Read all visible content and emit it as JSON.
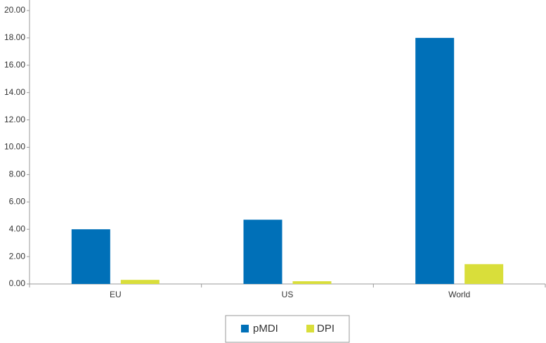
{
  "chart_data": {
    "type": "bar",
    "categories": [
      "EU",
      "US",
      "World"
    ],
    "series": [
      {
        "name": "pMDI",
        "color": "#0070b8",
        "values": [
          4.0,
          4.7,
          18.0
        ]
      },
      {
        "name": "DPI",
        "color": "#d9de3a",
        "values": [
          0.3,
          0.2,
          1.45
        ]
      }
    ],
    "ylim": [
      0,
      20
    ],
    "yticks": [
      {
        "value": 0,
        "label": "0.00"
      },
      {
        "value": 2,
        "label": "2.00"
      },
      {
        "value": 4,
        "label": "4.00"
      },
      {
        "value": 6,
        "label": "6.00"
      },
      {
        "value": 8,
        "label": "8.00"
      },
      {
        "value": 10,
        "label": "10.00"
      },
      {
        "value": 12,
        "label": "12.00"
      },
      {
        "value": 14,
        "label": "14.00"
      },
      {
        "value": 16,
        "label": "16.00"
      },
      {
        "value": 18,
        "label": "18.00"
      },
      {
        "value": 20,
        "label": "20.00"
      }
    ],
    "grid": false,
    "legend": "bottom"
  }
}
